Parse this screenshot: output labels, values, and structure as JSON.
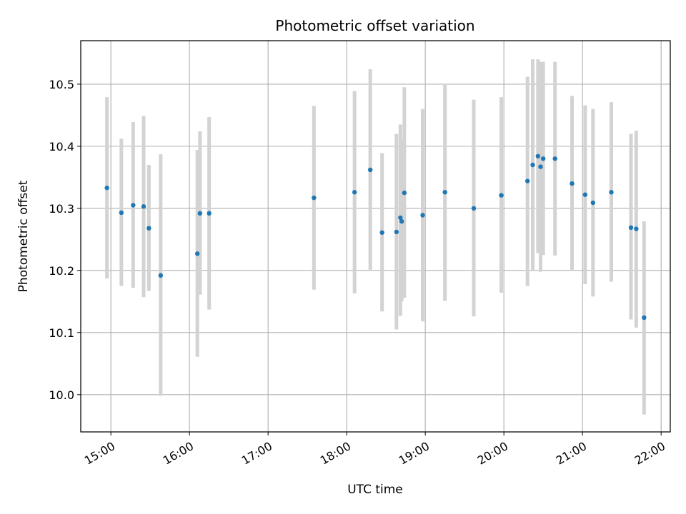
{
  "chart_data": {
    "type": "scatter",
    "title": "Photometric offset variation",
    "xlabel": "UTC time",
    "ylabel": "Photometric offset",
    "x_ticks": [
      "15:00",
      "16:00",
      "17:00",
      "18:00",
      "19:00",
      "20:00",
      "21:00",
      "22:00"
    ],
    "y_ticks": [
      "10.0",
      "10.1",
      "10.2",
      "10.3",
      "10.4",
      "10.5"
    ],
    "xlim": [
      "14:37",
      "22:07"
    ],
    "ylim": [
      9.94,
      10.57
    ],
    "grid": true,
    "marker_color": "#1f77b4",
    "errorbar_color": "#d3d3d3",
    "points": [
      {
        "t": "14:57",
        "y": 10.333,
        "lo": 10.187,
        "hi": 10.479
      },
      {
        "t": "15:08",
        "y": 10.293,
        "lo": 10.175,
        "hi": 10.412
      },
      {
        "t": "15:17",
        "y": 10.305,
        "lo": 10.172,
        "hi": 10.439
      },
      {
        "t": "15:25",
        "y": 10.303,
        "lo": 10.157,
        "hi": 10.449
      },
      {
        "t": "15:29",
        "y": 10.268,
        "lo": 10.167,
        "hi": 10.37
      },
      {
        "t": "15:38",
        "y": 10.192,
        "lo": 9.998,
        "hi": 10.387
      },
      {
        "t": "16:06",
        "y": 10.227,
        "lo": 10.061,
        "hi": 10.394
      },
      {
        "t": "16:08",
        "y": 10.292,
        "lo": 10.161,
        "hi": 10.424
      },
      {
        "t": "16:15",
        "y": 10.292,
        "lo": 10.137,
        "hi": 10.447
      },
      {
        "t": "17:35",
        "y": 10.317,
        "lo": 10.169,
        "hi": 10.465
      },
      {
        "t": "18:06",
        "y": 10.326,
        "lo": 10.163,
        "hi": 10.489
      },
      {
        "t": "18:18",
        "y": 10.362,
        "lo": 10.2,
        "hi": 10.524
      },
      {
        "t": "18:27",
        "y": 10.261,
        "lo": 10.134,
        "hi": 10.389
      },
      {
        "t": "18:38",
        "y": 10.262,
        "lo": 10.105,
        "hi": 10.42
      },
      {
        "t": "18:41",
        "y": 10.285,
        "lo": 10.127,
        "hi": 10.435
      },
      {
        "t": "18:42",
        "y": 10.279,
        "lo": 10.15,
        "hi": 10.41
      },
      {
        "t": "18:44",
        "y": 10.325,
        "lo": 10.156,
        "hi": 10.495
      },
      {
        "t": "18:58",
        "y": 10.289,
        "lo": 10.118,
        "hi": 10.46
      },
      {
        "t": "19:15",
        "y": 10.326,
        "lo": 10.151,
        "hi": 10.501
      },
      {
        "t": "19:37",
        "y": 10.3,
        "lo": 10.126,
        "hi": 10.475
      },
      {
        "t": "19:58",
        "y": 10.321,
        "lo": 10.164,
        "hi": 10.479
      },
      {
        "t": "20:18",
        "y": 10.344,
        "lo": 10.175,
        "hi": 10.512
      },
      {
        "t": "20:22",
        "y": 10.37,
        "lo": 10.201,
        "hi": 10.54
      },
      {
        "t": "20:26",
        "y": 10.384,
        "lo": 10.228,
        "hi": 10.54
      },
      {
        "t": "20:28",
        "y": 10.367,
        "lo": 10.198,
        "hi": 10.536
      },
      {
        "t": "20:30",
        "y": 10.38,
        "lo": 10.225,
        "hi": 10.536
      },
      {
        "t": "20:39",
        "y": 10.38,
        "lo": 10.224,
        "hi": 10.536
      },
      {
        "t": "20:52",
        "y": 10.34,
        "lo": 10.2,
        "hi": 10.481
      },
      {
        "t": "21:02",
        "y": 10.322,
        "lo": 10.178,
        "hi": 10.466
      },
      {
        "t": "21:08",
        "y": 10.309,
        "lo": 10.158,
        "hi": 10.46
      },
      {
        "t": "21:22",
        "y": 10.326,
        "lo": 10.182,
        "hi": 10.471
      },
      {
        "t": "21:37",
        "y": 10.269,
        "lo": 10.121,
        "hi": 10.42
      },
      {
        "t": "21:41",
        "y": 10.267,
        "lo": 10.108,
        "hi": 10.425
      },
      {
        "t": "21:47",
        "y": 10.124,
        "lo": 9.968,
        "hi": 10.279
      }
    ]
  }
}
